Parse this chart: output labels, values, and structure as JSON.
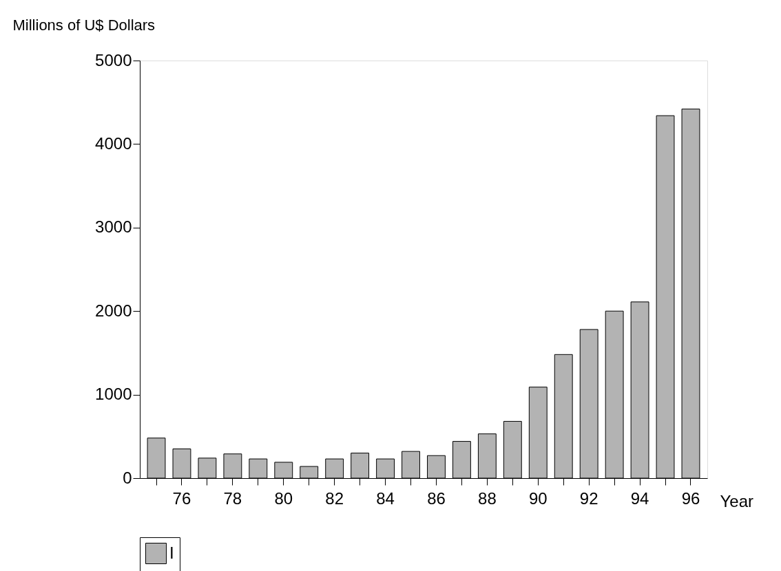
{
  "chart_data": {
    "type": "bar",
    "xlabel": "Year",
    "ylabel": "Millions of U$ Dollars",
    "categories": [
      null,
      "76",
      null,
      "78",
      null,
      "80",
      null,
      "82",
      null,
      "84",
      null,
      "86",
      null,
      "88",
      null,
      "90",
      null,
      "92",
      null,
      "94",
      null,
      "96"
    ],
    "series": [
      {
        "name": "I",
        "color": "#b3b3b3",
        "values": [
          480,
          350,
          240,
          290,
          230,
          190,
          140,
          230,
          300,
          230,
          320,
          270,
          440,
          530,
          680,
          1090,
          1480,
          1780,
          2000,
          2110,
          4340,
          4420
        ]
      }
    ],
    "ylim": [
      0,
      5000
    ],
    "yticks": [
      0,
      1000,
      2000,
      3000,
      4000,
      5000
    ],
    "grid": false,
    "legend": "bottom"
  }
}
